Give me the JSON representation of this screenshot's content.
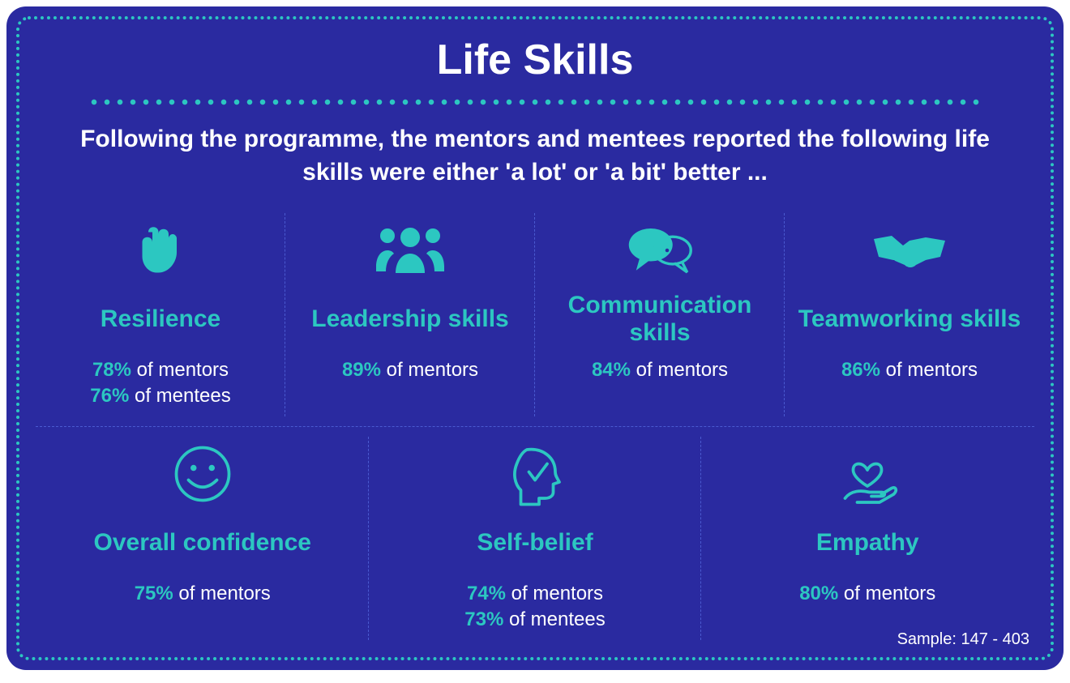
{
  "colors": {
    "background": "#2a2aa0",
    "accent": "#2cc7c1",
    "white": "#ffffff",
    "divider": "#4a5ad0"
  },
  "title": "Life Skills",
  "subtitle": "Following the programme, the mentors and mentees reported the following life skills were either 'a lot' or 'a bit' better ...",
  "sample_label": "Sample: 147 - 403",
  "row1": [
    {
      "name": "Resilience",
      "icon": "fist",
      "stats": [
        {
          "pct": "78%",
          "rest": " of mentors"
        },
        {
          "pct": "76%",
          "rest": " of mentees"
        }
      ]
    },
    {
      "name": "Leadership skills",
      "icon": "people",
      "stats": [
        {
          "pct": "89%",
          "rest": " of mentors"
        }
      ]
    },
    {
      "name": "Communication skills",
      "icon": "chat",
      "stats": [
        {
          "pct": "84%",
          "rest": " of mentors"
        }
      ]
    },
    {
      "name": "Teamworking skills",
      "icon": "handshake",
      "stats": [
        {
          "pct": "86%",
          "rest": " of mentors"
        }
      ]
    }
  ],
  "row2": [
    {
      "name": "Overall confidence",
      "icon": "smile",
      "stats": [
        {
          "pct": "75%",
          "rest": " of mentors"
        }
      ]
    },
    {
      "name": "Self-belief",
      "icon": "head",
      "stats": [
        {
          "pct": "74%",
          "rest": " of mentors"
        },
        {
          "pct": "73%",
          "rest": " of mentees"
        }
      ]
    },
    {
      "name": "Empathy",
      "icon": "heart-hand",
      "stats": [
        {
          "pct": "80%",
          "rest": " of mentors"
        }
      ]
    }
  ],
  "icon_style": {
    "size": 80,
    "stroke_width": 3
  }
}
